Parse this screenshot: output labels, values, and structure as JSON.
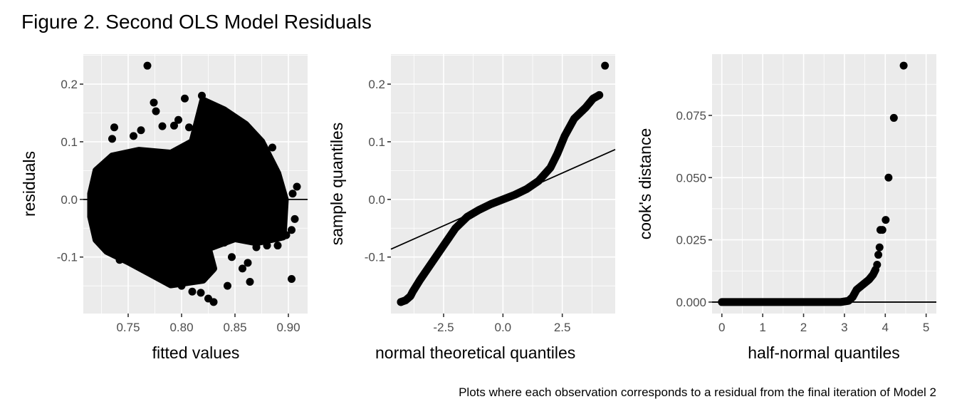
{
  "figure": {
    "title": "Figure 2. Second OLS Model Residuals",
    "caption": "Plots where each observation corresponds to a residual from the final iteration of Model 2",
    "panel_background": "#ebebeb",
    "point_color": "#000000"
  },
  "chart_data": [
    {
      "type": "scatter",
      "xlabel": "fitted values",
      "ylabel": "residuals",
      "xlim": [
        0.708,
        0.918
      ],
      "ylim": [
        -0.198,
        0.252
      ],
      "xticks": [
        0.75,
        0.8,
        0.85,
        0.9
      ],
      "xtick_labels": [
        "0.75",
        "0.80",
        "0.85",
        "0.90"
      ],
      "yticks": [
        -0.1,
        0.0,
        0.1,
        0.2
      ],
      "ytick_labels": [
        "-0.1",
        "0.0",
        "0.1",
        "0.2"
      ],
      "grid": true,
      "hline": 0,
      "dense_region": [
        [
          0.715,
          0.01
        ],
        [
          0.72,
          0.05
        ],
        [
          0.735,
          0.075
        ],
        [
          0.76,
          0.085
        ],
        [
          0.79,
          0.08
        ],
        [
          0.81,
          0.1
        ],
        [
          0.82,
          0.172
        ],
        [
          0.84,
          0.155
        ],
        [
          0.86,
          0.13
        ],
        [
          0.875,
          0.1
        ],
        [
          0.89,
          0.045
        ],
        [
          0.897,
          0.0
        ],
        [
          0.895,
          -0.065
        ],
        [
          0.87,
          -0.075
        ],
        [
          0.85,
          -0.068
        ],
        [
          0.825,
          -0.085
        ],
        [
          0.83,
          -0.12
        ],
        [
          0.82,
          -0.14
        ],
        [
          0.79,
          -0.148
        ],
        [
          0.77,
          -0.128
        ],
        [
          0.75,
          -0.108
        ],
        [
          0.73,
          -0.09
        ],
        [
          0.72,
          -0.07
        ],
        [
          0.715,
          -0.03
        ]
      ],
      "points": [
        [
          0.768,
          0.232
        ],
        [
          0.803,
          0.175
        ],
        [
          0.819,
          0.18
        ],
        [
          0.774,
          0.168
        ],
        [
          0.776,
          0.153
        ],
        [
          0.782,
          0.127
        ],
        [
          0.737,
          0.125
        ],
        [
          0.735,
          0.105
        ],
        [
          0.755,
          0.11
        ],
        [
          0.762,
          0.12
        ],
        [
          0.797,
          0.138
        ],
        [
          0.793,
          0.128
        ],
        [
          0.807,
          0.125
        ],
        [
          0.885,
          0.09
        ],
        [
          0.908,
          0.022
        ],
        [
          0.904,
          0.01
        ],
        [
          0.906,
          -0.034
        ],
        [
          0.903,
          -0.053
        ],
        [
          0.898,
          -0.062
        ],
        [
          0.903,
          -0.138
        ],
        [
          0.864,
          -0.143
        ],
        [
          0.843,
          -0.15
        ],
        [
          0.847,
          -0.1
        ],
        [
          0.857,
          -0.12
        ],
        [
          0.862,
          -0.11
        ],
        [
          0.83,
          -0.178
        ],
        [
          0.825,
          -0.172
        ],
        [
          0.818,
          -0.162
        ],
        [
          0.81,
          -0.16
        ],
        [
          0.8,
          -0.15
        ],
        [
          0.797,
          -0.144
        ],
        [
          0.87,
          -0.083
        ],
        [
          0.88,
          -0.08
        ],
        [
          0.84,
          -0.075
        ],
        [
          0.89,
          -0.08
        ],
        [
          0.742,
          -0.105
        ]
      ]
    },
    {
      "type": "scatter",
      "xlabel": "normal theoretical quantiles",
      "ylabel": "sample quantiles",
      "xlim": [
        -4.72,
        4.73
      ],
      "ylim": [
        -0.198,
        0.252
      ],
      "xticks": [
        -2.5,
        0.0,
        2.5
      ],
      "xtick_labels": [
        "-2.5",
        "0.0",
        "2.5"
      ],
      "yticks": [
        -0.1,
        0.0,
        0.1,
        0.2
      ],
      "ytick_labels": [
        "-0.1",
        "0.0",
        "0.1",
        "0.2"
      ],
      "grid": true,
      "reference_line": {
        "slope": 0.0183,
        "intercept": 0.0
      },
      "curve": [
        [
          -4.3,
          -0.178
        ],
        [
          -4.1,
          -0.175
        ],
        [
          -3.9,
          -0.168
        ],
        [
          -3.8,
          -0.16
        ],
        [
          -3.5,
          -0.14
        ],
        [
          -3.0,
          -0.11
        ],
        [
          -2.5,
          -0.08
        ],
        [
          -2.0,
          -0.05
        ],
        [
          -1.5,
          -0.03
        ],
        [
          -1.0,
          -0.018
        ],
        [
          -0.5,
          -0.008
        ],
        [
          0,
          0
        ],
        [
          0.5,
          0.008
        ],
        [
          1.0,
          0.018
        ],
        [
          1.5,
          0.032
        ],
        [
          2.0,
          0.055
        ],
        [
          2.3,
          0.08
        ],
        [
          2.6,
          0.11
        ],
        [
          3.0,
          0.14
        ],
        [
          3.5,
          0.16
        ],
        [
          3.8,
          0.175
        ],
        [
          4.06,
          0.181
        ]
      ],
      "points": [
        [
          4.3,
          0.232
        ],
        [
          4.06,
          0.181
        ],
        [
          -4.3,
          -0.178
        ]
      ]
    },
    {
      "type": "scatter",
      "xlabel": "half-normal quantiles",
      "ylabel": "cook's distance",
      "xlim": [
        -0.24,
        5.25
      ],
      "ylim": [
        -0.0046,
        0.0996
      ],
      "xticks": [
        0,
        1,
        2,
        3,
        4,
        5
      ],
      "xtick_labels": [
        "0",
        "1",
        "2",
        "3",
        "4",
        "5"
      ],
      "yticks": [
        0.0,
        0.025,
        0.05,
        0.075
      ],
      "ytick_labels": [
        "0.000",
        "0.025",
        "0.050",
        "0.075"
      ],
      "grid": true,
      "hline": 0,
      "curve": [
        [
          0,
          0
        ],
        [
          2.9,
          0.0
        ],
        [
          3.1,
          0.0005
        ],
        [
          3.2,
          0.002
        ],
        [
          3.3,
          0.005
        ],
        [
          3.45,
          0.007
        ],
        [
          3.6,
          0.009
        ],
        [
          3.7,
          0.011
        ],
        [
          3.76,
          0.013
        ]
      ],
      "points": [
        [
          4.45,
          0.095
        ],
        [
          4.21,
          0.074
        ],
        [
          4.08,
          0.05
        ],
        [
          4.01,
          0.033
        ],
        [
          3.93,
          0.029
        ],
        [
          3.88,
          0.029
        ],
        [
          3.86,
          0.022
        ],
        [
          3.83,
          0.019
        ],
        [
          3.8,
          0.015
        ]
      ]
    }
  ]
}
